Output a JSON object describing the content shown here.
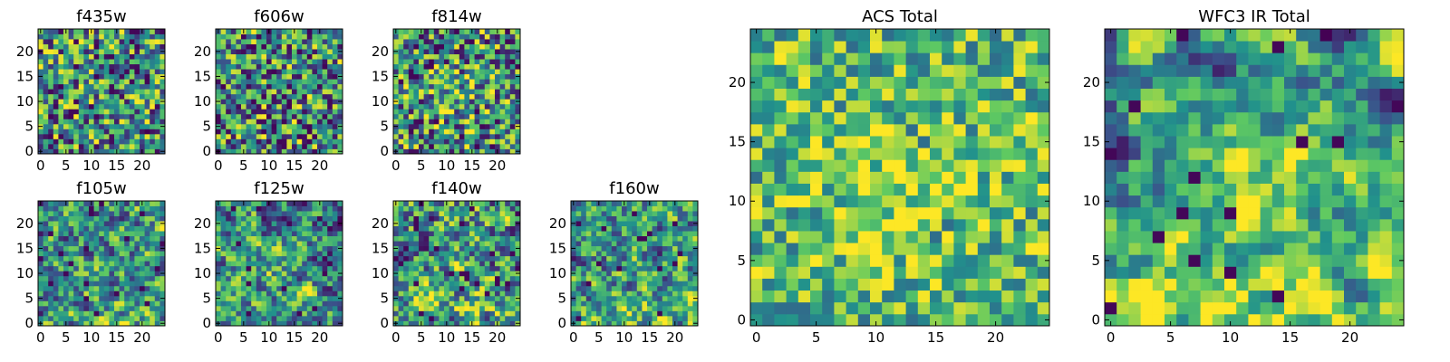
{
  "chart_data": {
    "type": "heatmap",
    "colormap": [
      "#440154",
      "#3b528b",
      "#21918c",
      "#5ec962",
      "#fde725"
    ],
    "panels": [
      {
        "id": "f435w",
        "title": "f435w",
        "size": 25,
        "x_ticks": [
          0,
          5,
          10,
          15,
          20
        ],
        "y_ticks": [
          0,
          5,
          10,
          15,
          20
        ],
        "smooth": 1,
        "center_boost": 0.0,
        "bottom_boost": 0.0,
        "seed": 11
      },
      {
        "id": "f606w",
        "title": "f606w",
        "size": 25,
        "x_ticks": [
          0,
          5,
          10,
          15,
          20
        ],
        "y_ticks": [
          0,
          5,
          10,
          15,
          20
        ],
        "smooth": 1,
        "center_boost": 0.0,
        "bottom_boost": 0.0,
        "seed": 23
      },
      {
        "id": "f814w",
        "title": "f814w",
        "size": 25,
        "x_ticks": [
          0,
          5,
          10,
          15,
          20
        ],
        "y_ticks": [
          0,
          5,
          10,
          15,
          20
        ],
        "smooth": 1,
        "center_boost": 0.15,
        "bottom_boost": 0.0,
        "seed": 37
      },
      {
        "id": "f105w",
        "title": "f105w",
        "size": 25,
        "x_ticks": [
          0,
          5,
          10,
          15,
          20
        ],
        "y_ticks": [
          0,
          5,
          10,
          15,
          20
        ],
        "smooth": 2,
        "center_boost": 0.1,
        "bottom_boost": 0.1,
        "seed": 41
      },
      {
        "id": "f125w",
        "title": "f125w",
        "size": 25,
        "x_ticks": [
          0,
          5,
          10,
          15,
          20
        ],
        "y_ticks": [
          0,
          5,
          10,
          15,
          20
        ],
        "smooth": 2,
        "center_boost": 0.1,
        "bottom_boost": 0.1,
        "seed": 53
      },
      {
        "id": "f140w",
        "title": "f140w",
        "size": 25,
        "x_ticks": [
          0,
          5,
          10,
          15,
          20
        ],
        "y_ticks": [
          0,
          5,
          10,
          15,
          20
        ],
        "smooth": 2,
        "center_boost": 0.05,
        "bottom_boost": 0.15,
        "seed": 67
      },
      {
        "id": "f160w",
        "title": "f160w",
        "size": 25,
        "x_ticks": [
          0,
          5,
          10,
          15,
          20
        ],
        "y_ticks": [
          0,
          5,
          10,
          15,
          20
        ],
        "smooth": 2,
        "center_boost": 0.05,
        "bottom_boost": 0.2,
        "seed": 79
      },
      {
        "id": "acs-total",
        "title": "ACS Total",
        "size": 25,
        "x_ticks": [
          0,
          5,
          10,
          15,
          20
        ],
        "y_ticks": [
          0,
          5,
          10,
          15,
          20
        ],
        "smooth": 1,
        "center_boost": 0.25,
        "bottom_boost": 0.0,
        "value_floor": 0.35,
        "seed": 97
      },
      {
        "id": "wfc3-ir-total",
        "title": "WFC3 IR Total",
        "size": 25,
        "x_ticks": [
          0,
          5,
          10,
          15,
          20
        ],
        "y_ticks": [
          0,
          5,
          10,
          15,
          20
        ],
        "smooth": 3,
        "center_boost": 0.25,
        "bottom_boost": 0.35,
        "value_floor": 0.0,
        "seed": 113
      }
    ]
  }
}
